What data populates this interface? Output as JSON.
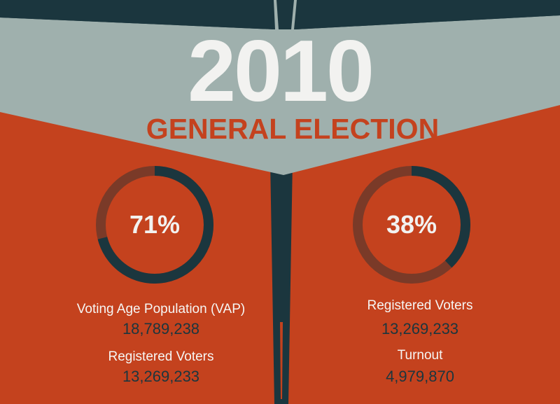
{
  "title": {
    "year": "2010",
    "subtitle": "GENERAL ELECTION"
  },
  "colors": {
    "background": "#c4421e",
    "gray_band": "#9fb0ad",
    "dark_navy": "#1b363e",
    "ring_remainder": "#7a3a28",
    "light_text": "#f2f2f0"
  },
  "left_panel": {
    "percent_label": "71%",
    "percent_value": 71,
    "stat1_label": "Voting Age Population (VAP)",
    "stat1_value": "18,789,238",
    "stat2_label": "Registered Voters",
    "stat2_value": "13,269,233"
  },
  "right_panel": {
    "percent_label": "38%",
    "percent_value": 38,
    "stat1_label": "Registered Voters",
    "stat1_value": "13,269,233",
    "stat2_label": "Turnout",
    "stat2_value": "4,979,870"
  }
}
